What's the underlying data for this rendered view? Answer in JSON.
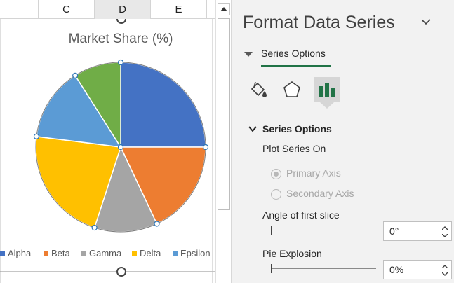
{
  "sheet": {
    "columns": [
      {
        "label": "",
        "selected": false
      },
      {
        "label": "C",
        "selected": false
      },
      {
        "label": "D",
        "selected": true
      },
      {
        "label": "E",
        "selected": false
      },
      {
        "label": "",
        "selected": false
      }
    ]
  },
  "chart_data": {
    "type": "pie",
    "title": "Market Share (%)",
    "categories": [
      "Alpha",
      "Beta",
      "Gamma",
      "Delta",
      "Epsilon",
      ""
    ],
    "values": [
      25,
      18,
      12,
      22,
      14,
      9
    ],
    "colors": [
      "#4472c4",
      "#ed7d31",
      "#a5a5a5",
      "#ffc000",
      "#5b9bd5",
      "#70ad47"
    ],
    "legend": {
      "position": "bottom",
      "entries": [
        "Alpha",
        "Beta",
        "Gamma",
        "Delta",
        "Epsilon"
      ]
    },
    "first_slice_angle_deg": 0,
    "explosion_pct": 0,
    "selected": true
  },
  "pane": {
    "title": "Format Data Series",
    "tab_label": "Series Options",
    "icons": [
      "fill-line-icon",
      "effects-pentagon-icon",
      "series-options-bar-icon"
    ],
    "section_label": "Series Options",
    "plot_series_on_label": "Plot Series On",
    "primary_axis_label": "Primary Axis",
    "secondary_axis_label": "Secondary Axis",
    "primary_checked": true,
    "angle_label": "Angle of first slice",
    "angle_value": "0°",
    "angle_fraction": 0,
    "explosion_label": "Pie Explosion",
    "explosion_value": "0%",
    "explosion_fraction": 0
  }
}
